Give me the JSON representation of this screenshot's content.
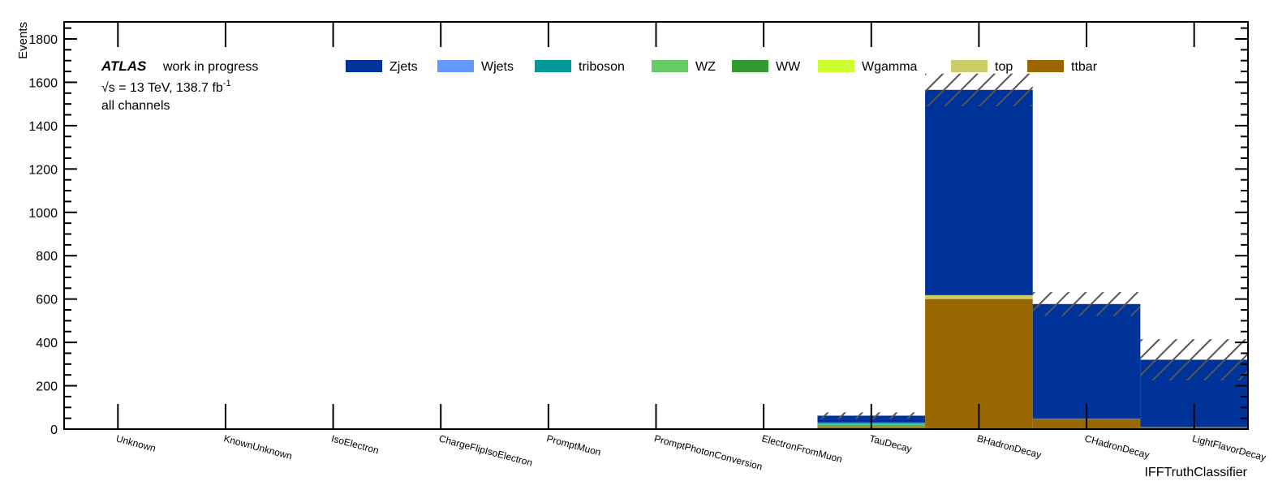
{
  "chart_data": {
    "type": "bar",
    "stacked": true,
    "title": "",
    "xlabel": "IFFTruthClassifier",
    "ylabel": "Events",
    "ylim": [
      0,
      1800
    ],
    "yticks": [
      0,
      200,
      400,
      600,
      800,
      1000,
      1200,
      1400,
      1600,
      1800
    ],
    "categories": [
      "Unknown",
      "KnownUnknown",
      "IsoElectron",
      "ChargeFlipIsoElectron",
      "PromptMuon",
      "PromptPhotonConversion",
      "ElectronFromMuon",
      "TauDecay",
      "BHadronDecay",
      "CHadronDecay",
      "LightFlavorDecay"
    ],
    "series": [
      {
        "name": "ttbar",
        "color": "#996600",
        "values": [
          0,
          0,
          0,
          0,
          0,
          0,
          0,
          10,
          600,
          45,
          8
        ]
      },
      {
        "name": "top",
        "color": "#cccc66",
        "values": [
          0,
          0,
          0,
          0,
          0,
          0,
          0,
          2,
          18,
          2,
          1
        ]
      },
      {
        "name": "Wgamma",
        "color": "#ccff33",
        "values": [
          0,
          0,
          0,
          0,
          0,
          0,
          0,
          0,
          0,
          0,
          0
        ]
      },
      {
        "name": "WW",
        "color": "#339933",
        "values": [
          0,
          0,
          0,
          0,
          0,
          0,
          0,
          5,
          0,
          0,
          0
        ]
      },
      {
        "name": "WZ",
        "color": "#66cc66",
        "values": [
          0,
          0,
          0,
          0,
          0,
          0,
          0,
          6,
          0,
          0,
          0
        ]
      },
      {
        "name": "triboson",
        "color": "#009999",
        "values": [
          0,
          0,
          0,
          0,
          0,
          0,
          0,
          4,
          0,
          0,
          0
        ]
      },
      {
        "name": "Wjets",
        "color": "#6699ff",
        "values": [
          0,
          0,
          0,
          0,
          0,
          0,
          0,
          3,
          0,
          0,
          0
        ]
      },
      {
        "name": "Zjets",
        "color": "#003399",
        "values": [
          0,
          0,
          0,
          0,
          0,
          0,
          0,
          32,
          947,
          530,
          311
        ]
      }
    ],
    "totals": [
      0,
      0,
      0,
      0,
      0,
      0,
      0,
      62,
      1565,
      577,
      320
    ],
    "uncertainty": [
      0,
      0,
      0,
      0,
      0,
      0,
      0,
      15,
      75,
      55,
      95
    ],
    "legend_order": [
      "Zjets",
      "Wjets",
      "triboson",
      "WZ",
      "WW",
      "Wgamma",
      "top",
      "ttbar"
    ],
    "legend_position": "top"
  },
  "labels": {
    "atlas": "ATLAS",
    "status": "work in progress",
    "energy_prefix": "√s = 13 TeV, 138.7 fb",
    "energy_sup": "-1",
    "channels": "all channels"
  }
}
